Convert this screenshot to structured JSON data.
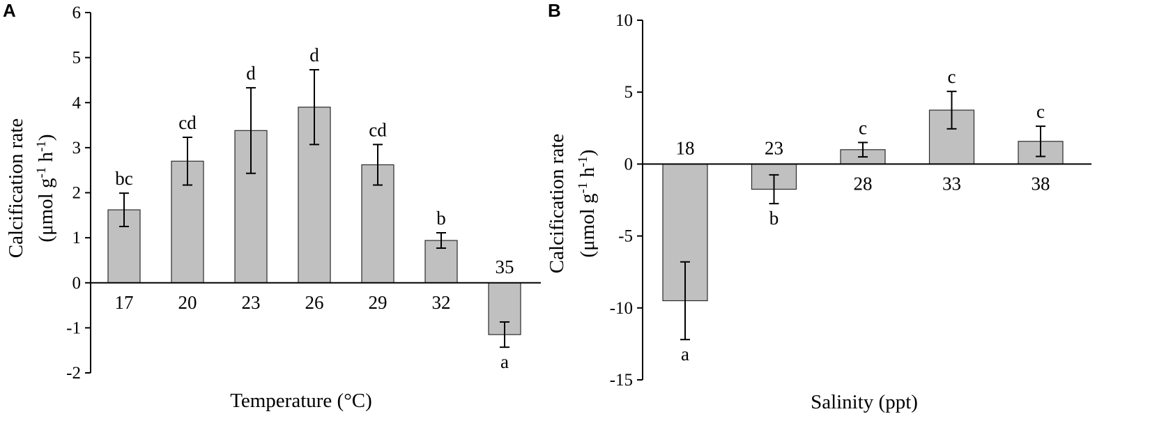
{
  "chart_data": [
    {
      "panel": "A",
      "type": "bar",
      "xlabel": "Temperature (°C)",
      "ylabel_line1": "Calcification rate",
      "ylabel_line2_prefix": "(μmol g",
      "ylabel_sup1": "-1",
      "ylabel_mid": " h",
      "ylabel_sup2": "-1",
      "ylabel_suffix": ")",
      "ylim": [
        -2,
        6
      ],
      "yticks": [
        -2,
        -1,
        0,
        1,
        2,
        3,
        4,
        5,
        6
      ],
      "categories": [
        "17",
        "20",
        "23",
        "26",
        "29",
        "32",
        "35"
      ],
      "values": [
        1.62,
        2.7,
        3.38,
        3.9,
        2.62,
        0.94,
        -1.15
      ],
      "errors": [
        0.37,
        0.53,
        0.95,
        0.83,
        0.45,
        0.17,
        0.28
      ],
      "significance": [
        "bc",
        "cd",
        "d",
        "d",
        "cd",
        "b",
        "a"
      ]
    },
    {
      "panel": "B",
      "type": "bar",
      "xlabel": "Salinity (ppt)",
      "ylabel_line1": "Calcification rate",
      "ylabel_line2_prefix": "(μmol g",
      "ylabel_sup1": "-1",
      "ylabel_mid": " h",
      "ylabel_sup2": "-1",
      "ylabel_suffix": ")",
      "ylim": [
        -15,
        10
      ],
      "yticks": [
        -15,
        -10,
        -5,
        0,
        5,
        10
      ],
      "categories": [
        "18",
        "23",
        "28",
        "33",
        "38"
      ],
      "values": [
        -9.5,
        -1.75,
        1.0,
        3.75,
        1.58
      ],
      "errors": [
        2.7,
        1.0,
        0.5,
        1.3,
        1.05
      ],
      "significance": [
        "a",
        "b",
        "c",
        "c",
        "c"
      ]
    }
  ]
}
